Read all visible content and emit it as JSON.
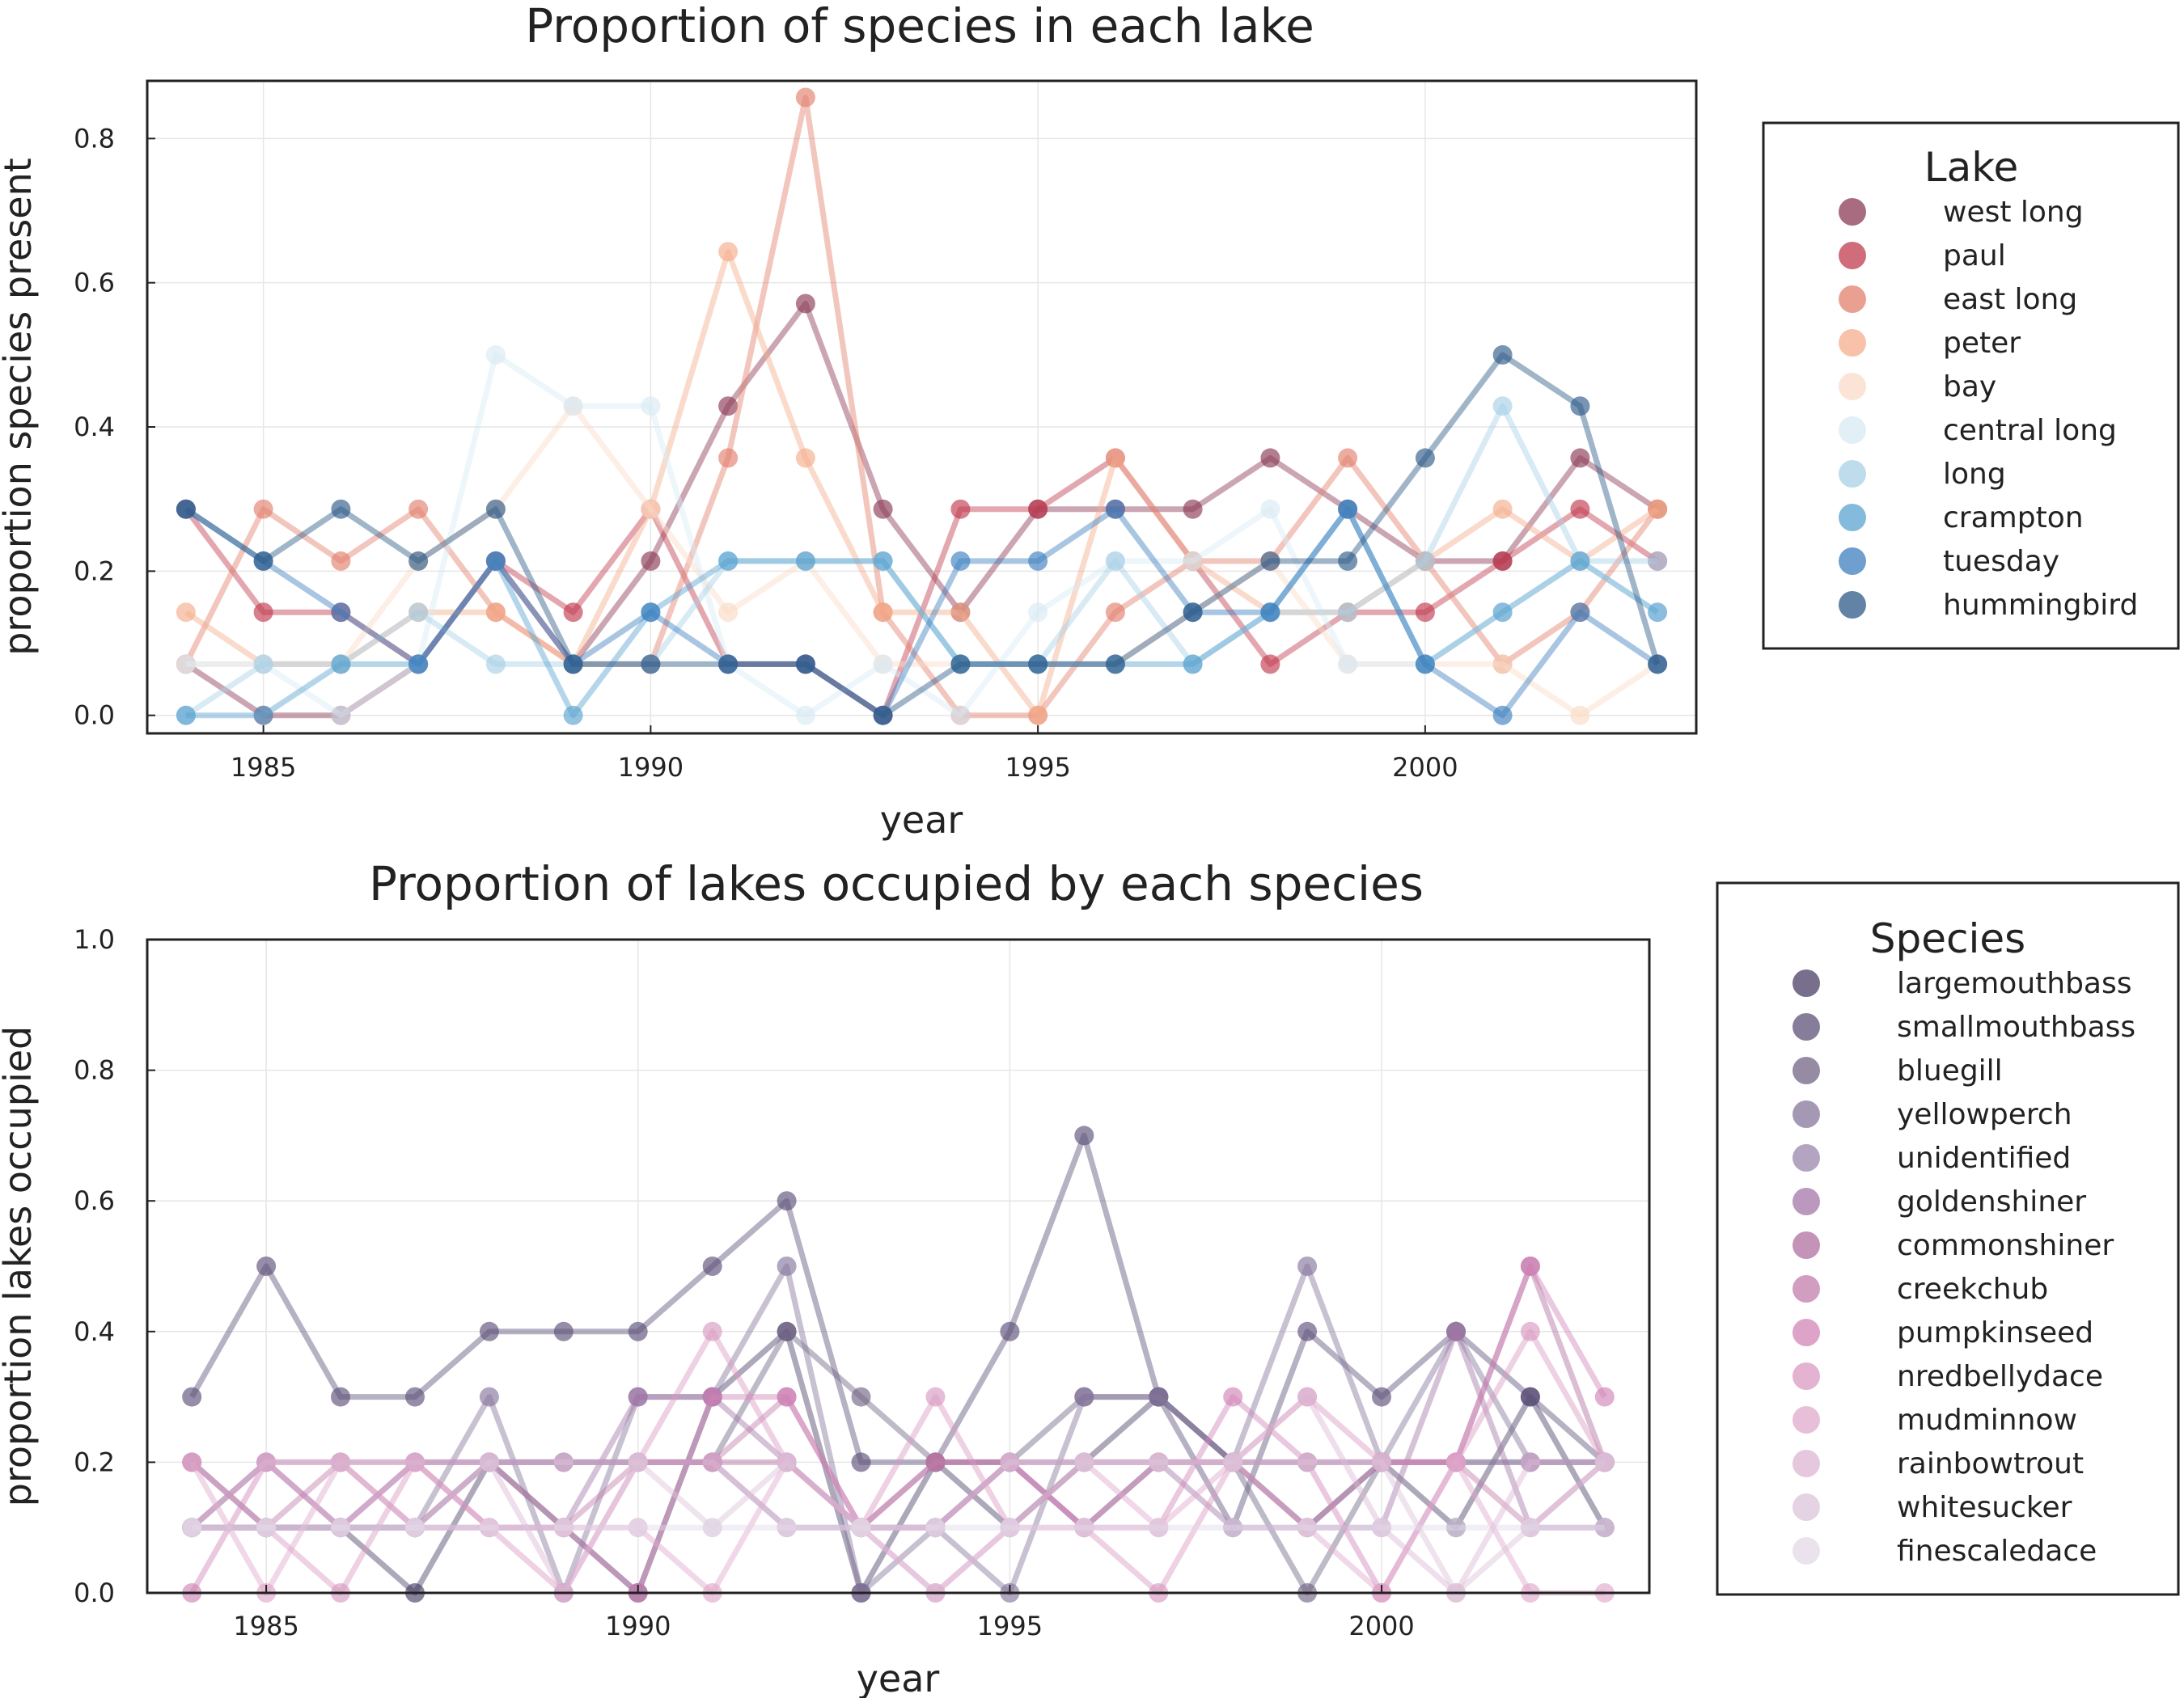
{
  "chart_data": [
    {
      "type": "line",
      "title": "Proportion of species in each lake",
      "xlabel": "year",
      "ylabel": "proportion species present",
      "xlim": [
        1983.5,
        2003.5
      ],
      "ylim": [
        -0.025,
        0.88
      ],
      "xticks": [
        1985,
        1990,
        1995,
        2000
      ],
      "xtick_labels": [
        "1985",
        "1990",
        "1995",
        "2000"
      ],
      "yticks": [
        0.0,
        0.2,
        0.4,
        0.6,
        0.8
      ],
      "ytick_labels": [
        "0.0",
        "0.2",
        "0.4",
        "0.6",
        "0.8"
      ],
      "grid": true,
      "legend_title": "Lake",
      "legend_position": "right",
      "x": [
        1984,
        1985,
        1986,
        1987,
        1988,
        1989,
        1990,
        1991,
        1992,
        1993,
        1994,
        1995,
        1996,
        1997,
        1998,
        1999,
        2000,
        2001,
        2002,
        2003
      ],
      "series": [
        {
          "name": "west long",
          "color": "#8b3a55",
          "values": [
            0.071,
            0.0,
            0.0,
            0.071,
            0.214,
            0.071,
            0.214,
            0.429,
            0.571,
            0.286,
            0.143,
            0.286,
            0.286,
            0.286,
            0.357,
            0.286,
            0.214,
            0.214,
            0.357,
            0.286
          ]
        },
        {
          "name": "paul",
          "color": "#c23b4f",
          "values": [
            0.286,
            0.143,
            0.143,
            0.071,
            0.214,
            0.143,
            0.286,
            0.071,
            0.071,
            0.0,
            0.286,
            0.286,
            0.357,
            0.214,
            0.071,
            0.143,
            0.143,
            0.214,
            0.286,
            0.214
          ]
        },
        {
          "name": "east long",
          "color": "#e2806c",
          "values": [
            0.071,
            0.286,
            0.214,
            0.286,
            0.143,
            0.071,
            0.071,
            0.357,
            0.857,
            0.143,
            0.0,
            0.0,
            0.143,
            0.214,
            0.214,
            0.357,
            0.214,
            0.071,
            0.143,
            0.286
          ]
        },
        {
          "name": "peter",
          "color": "#f4ae8c",
          "values": [
            0.143,
            0.071,
            0.071,
            0.143,
            0.143,
            0.071,
            0.286,
            0.643,
            0.357,
            0.143,
            0.143,
            0.0,
            0.357,
            0.214,
            0.143,
            0.143,
            0.214,
            0.286,
            0.214,
            0.286
          ]
        },
        {
          "name": "bay",
          "color": "#fadbc8",
          "values": [
            0.071,
            0.071,
            0.071,
            0.214,
            0.286,
            0.429,
            0.286,
            0.143,
            0.214,
            0.071,
            0.071,
            0.071,
            0.071,
            0.143,
            0.214,
            0.071,
            0.071,
            0.071,
            0.0,
            0.071
          ]
        },
        {
          "name": "central long",
          "color": "#d8eaf4",
          "values": [
            0.071,
            0.071,
            0.0,
            0.071,
            0.5,
            0.429,
            0.429,
            0.071,
            0.0,
            0.071,
            0.0,
            0.143,
            0.214,
            0.214,
            0.286,
            0.071,
            0.071,
            0.143,
            0.214,
            0.143
          ]
        },
        {
          "name": "long",
          "color": "#a8d0e6",
          "values": [
            0.0,
            0.071,
            0.071,
            0.143,
            0.071,
            0.071,
            0.071,
            0.214,
            0.214,
            0.214,
            0.071,
            0.071,
            0.214,
            0.071,
            0.143,
            0.143,
            0.214,
            0.429,
            0.214,
            0.214
          ]
        },
        {
          "name": "crampton",
          "color": "#5ba3d0",
          "values": [
            0.0,
            0.0,
            0.071,
            0.071,
            0.214,
            0.0,
            0.143,
            0.214,
            0.214,
            0.214,
            0.071,
            0.071,
            0.071,
            0.071,
            0.143,
            0.286,
            0.071,
            0.143,
            0.214,
            0.143
          ]
        },
        {
          "name": "tuesday",
          "color": "#3e7fbf",
          "values": [
            0.286,
            0.214,
            0.143,
            0.071,
            0.214,
            0.071,
            0.143,
            0.071,
            0.071,
            0.0,
            0.214,
            0.214,
            0.286,
            0.143,
            0.143,
            0.286,
            0.071,
            0.0,
            0.143,
            0.071
          ]
        },
        {
          "name": "hummingbird",
          "color": "#2e5a88",
          "values": [
            0.286,
            0.214,
            0.286,
            0.214,
            0.286,
            0.071,
            0.071,
            0.071,
            0.071,
            0.0,
            0.071,
            0.071,
            0.071,
            0.143,
            0.214,
            0.214,
            0.357,
            0.5,
            0.429,
            0.071
          ]
        }
      ]
    },
    {
      "type": "line",
      "title": "Proportion of lakes occupied by each species",
      "xlabel": "year",
      "ylabel": "proportion lakes occupied",
      "xlim": [
        1983.4,
        2003.6
      ],
      "ylim": [
        0.0,
        1.0
      ],
      "xticks": [
        1985,
        1990,
        1995,
        2000
      ],
      "xtick_labels": [
        "1985",
        "1990",
        "1995",
        "2000"
      ],
      "yticks": [
        0.0,
        0.2,
        0.4,
        0.6,
        0.8,
        1.0
      ],
      "ytick_labels": [
        "0.0",
        "0.2",
        "0.4",
        "0.6",
        "0.8",
        "1.0"
      ],
      "grid": true,
      "legend_title": "Species",
      "legend_position": "right",
      "x": [
        1984,
        1985,
        1986,
        1987,
        1988,
        1989,
        1990,
        1991,
        1992,
        1993,
        1994,
        1995,
        1996,
        1997,
        1998,
        1999,
        2000,
        2001,
        2002,
        2003
      ],
      "series": [
        {
          "name": "largemouthbass",
          "color": "#4a3f66",
          "values": [
            0.1,
            0.1,
            0.1,
            0.0,
            0.2,
            0.1,
            0.0,
            0.3,
            0.4,
            0.0,
            0.2,
            0.1,
            0.2,
            0.3,
            0.2,
            0.1,
            0.2,
            0.1,
            0.3,
            0.1
          ]
        },
        {
          "name": "smallmouthbass",
          "color": "#5d5279",
          "values": [
            0.3,
            0.5,
            0.3,
            0.3,
            0.4,
            0.4,
            0.4,
            0.5,
            0.6,
            0.2,
            0.2,
            0.4,
            0.7,
            0.3,
            0.1,
            0.4,
            0.3,
            0.4,
            0.3,
            0.2
          ]
        },
        {
          "name": "bluegill",
          "color": "#716684",
          "values": [
            0.1,
            0.1,
            0.1,
            0.1,
            0.2,
            0.2,
            0.2,
            0.2,
            0.4,
            0.3,
            0.2,
            0.2,
            0.3,
            0.3,
            0.2,
            0.0,
            0.2,
            0.2,
            0.2,
            0.2
          ]
        },
        {
          "name": "yellowperch",
          "color": "#85769c",
          "values": [
            0.1,
            0.1,
            0.1,
            0.1,
            0.3,
            0.0,
            0.3,
            0.3,
            0.5,
            0.0,
            0.1,
            0.0,
            0.3,
            0.3,
            0.2,
            0.5,
            0.2,
            0.4,
            0.2,
            0.2
          ]
        },
        {
          "name": "unidentified",
          "color": "#9a85ad",
          "values": [
            0.1,
            0.2,
            0.1,
            0.2,
            0.2,
            0.2,
            0.2,
            0.2,
            0.1,
            0.1,
            0.1,
            0.2,
            0.2,
            0.2,
            0.2,
            0.2,
            0.2,
            0.2,
            0.2,
            0.2
          ]
        },
        {
          "name": "goldenshiner",
          "color": "#a477a8",
          "values": [
            0.2,
            0.1,
            0.1,
            0.1,
            0.1,
            0.1,
            0.3,
            0.3,
            0.2,
            0.1,
            0.1,
            0.2,
            0.1,
            0.2,
            0.1,
            0.1,
            0.1,
            0.4,
            0.1,
            0.1
          ]
        },
        {
          "name": "commonshiner",
          "color": "#b06fa0",
          "values": [
            0.1,
            0.2,
            0.2,
            0.2,
            0.2,
            0.2,
            0.2,
            0.2,
            0.2,
            0.1,
            0.2,
            0.2,
            0.1,
            0.2,
            0.2,
            0.2,
            0.2,
            0.2,
            0.5,
            0.2
          ]
        },
        {
          "name": "creekchub",
          "color": "#c27cab",
          "values": [
            0.2,
            0.1,
            0.2,
            0.1,
            0.2,
            0.1,
            0.2,
            0.2,
            0.3,
            0.1,
            0.2,
            0.2,
            0.2,
            0.2,
            0.2,
            0.1,
            0.2,
            0.2,
            0.1,
            0.2
          ]
        },
        {
          "name": "pumpkinseed",
          "color": "#d184b7",
          "values": [
            0.0,
            0.2,
            0.1,
            0.2,
            0.1,
            0.1,
            0.0,
            0.3,
            0.3,
            0.1,
            0.1,
            0.2,
            0.1,
            0.1,
            0.3,
            0.2,
            0.0,
            0.2,
            0.5,
            0.3
          ]
        },
        {
          "name": "nredbellydace",
          "color": "#d99ac2",
          "values": [
            0.1,
            0.1,
            0.0,
            0.2,
            0.1,
            0.0,
            0.2,
            0.4,
            0.2,
            0.1,
            0.3,
            0.1,
            0.1,
            0.0,
            0.2,
            0.3,
            0.2,
            0.2,
            0.4,
            0.2
          ]
        },
        {
          "name": "mudminnow",
          "color": "#e0a9cb",
          "values": [
            0.2,
            0.0,
            0.2,
            0.1,
            0.1,
            0.1,
            0.1,
            0.0,
            0.2,
            0.1,
            0.0,
            0.1,
            0.2,
            0.1,
            0.2,
            0.1,
            0.0,
            0.2,
            0.0,
            0.0
          ]
        },
        {
          "name": "rainbowtrout",
          "color": "#dcb6d3",
          "values": [
            0.1,
            0.2,
            0.2,
            0.2,
            0.2,
            0.0,
            0.2,
            0.2,
            0.1,
            0.1,
            0.0,
            0.1,
            0.2,
            0.2,
            0.2,
            0.3,
            0.1,
            0.0,
            0.2,
            0.2
          ]
        },
        {
          "name": "whitesucker",
          "color": "#dbc4da",
          "values": [
            0.1,
            0.1,
            0.1,
            0.1,
            0.2,
            0.2,
            0.2,
            0.1,
            0.2,
            0.1,
            0.1,
            0.2,
            0.2,
            0.2,
            0.2,
            0.2,
            0.2,
            0.0,
            0.1,
            0.2
          ]
        },
        {
          "name": "finescaledace",
          "color": "#e3d9e8",
          "values": [
            0.1,
            0.1,
            0.1,
            0.1,
            0.1,
            0.1,
            0.1,
            0.1,
            0.1,
            0.1,
            0.1,
            0.1,
            0.1,
            0.1,
            0.1,
            0.1,
            0.1,
            0.1,
            0.1,
            0.1
          ]
        }
      ]
    }
  ]
}
